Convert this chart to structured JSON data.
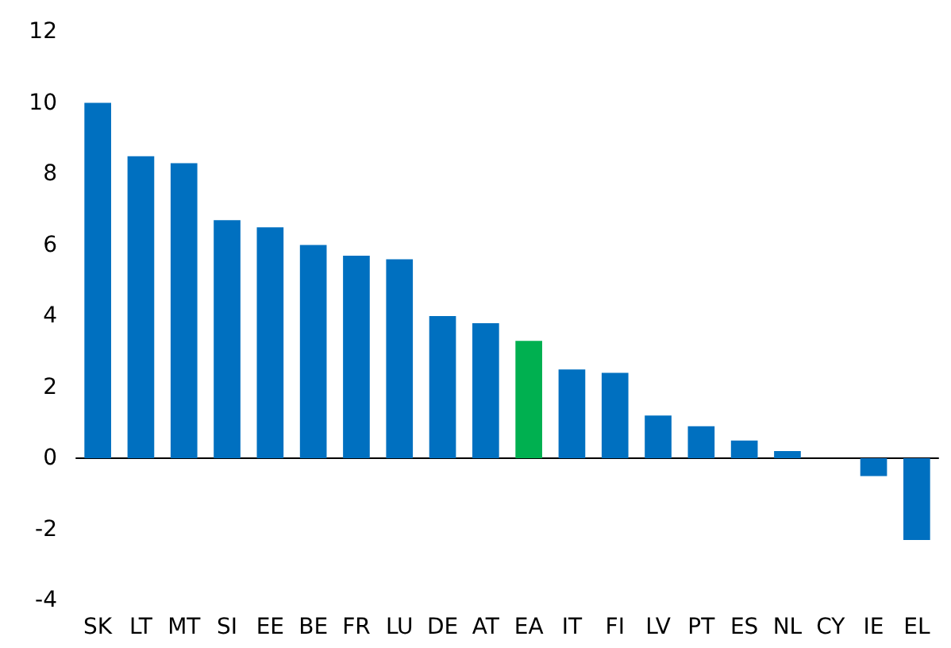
{
  "chart_data": {
    "type": "bar",
    "categories": [
      "SK",
      "LT",
      "MT",
      "SI",
      "EE",
      "BE",
      "FR",
      "LU",
      "DE",
      "AT",
      "EA",
      "IT",
      "FI",
      "LV",
      "PT",
      "ES",
      "NL",
      "CY",
      "IE",
      "EL"
    ],
    "values": [
      10.0,
      8.5,
      8.3,
      6.7,
      6.5,
      6.0,
      5.7,
      5.6,
      4.0,
      3.8,
      3.3,
      2.5,
      2.4,
      1.2,
      0.9,
      0.5,
      0.2,
      0.0,
      -0.5,
      -2.3
    ],
    "colors": [
      "#0070c0",
      "#0070c0",
      "#0070c0",
      "#0070c0",
      "#0070c0",
      "#0070c0",
      "#0070c0",
      "#0070c0",
      "#0070c0",
      "#0070c0",
      "#00b050",
      "#0070c0",
      "#0070c0",
      "#0070c0",
      "#0070c0",
      "#0070c0",
      "#0070c0",
      "#0070c0",
      "#0070c0",
      "#0070c0"
    ],
    "ylim": [
      -4,
      12
    ],
    "yticks": [
      -4,
      -2,
      0,
      2,
      4,
      6,
      8,
      10,
      12
    ]
  }
}
